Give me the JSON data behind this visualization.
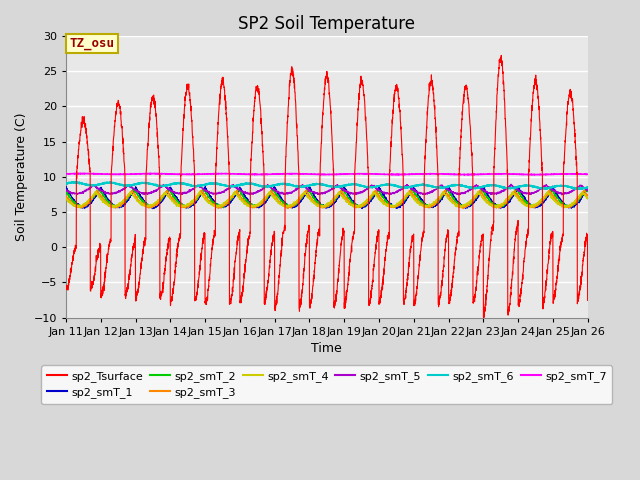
{
  "title": "SP2 Soil Temperature",
  "ylabel": "Soil Temperature (C)",
  "xlabel": "Time",
  "ylim": [
    -10,
    30
  ],
  "yticks": [
    -10,
    -5,
    0,
    5,
    10,
    15,
    20,
    25,
    30
  ],
  "xtick_labels": [
    "Jan 11",
    "Jan 12",
    "Jan 13",
    "Jan 14",
    "Jan 15",
    "Jan 16",
    "Jan 17",
    "Jan 18",
    "Jan 19",
    "Jan 20",
    "Jan 21",
    "Jan 22",
    "Jan 23",
    "Jan 24",
    "Jan 25",
    "Jan 26"
  ],
  "annotation_text": "TZ_osu",
  "annotation_color": "#990000",
  "annotation_bg": "#ffffcc",
  "annotation_border": "#bbaa00",
  "series_colors": {
    "sp2_Tsurface": "#ff0000",
    "sp2_smT_1": "#0000cc",
    "sp2_smT_2": "#00cc00",
    "sp2_smT_3": "#ff8800",
    "sp2_smT_4": "#cccc00",
    "sp2_smT_5": "#aa00cc",
    "sp2_smT_6": "#00cccc",
    "sp2_smT_7": "#ff00ff"
  },
  "fig_bg": "#d8d8d8",
  "plot_bg": "#e8e8e8",
  "grid_color": "#ffffff",
  "title_fontsize": 12,
  "axis_label_fontsize": 9,
  "tick_fontsize": 8,
  "legend_fontsize": 8
}
